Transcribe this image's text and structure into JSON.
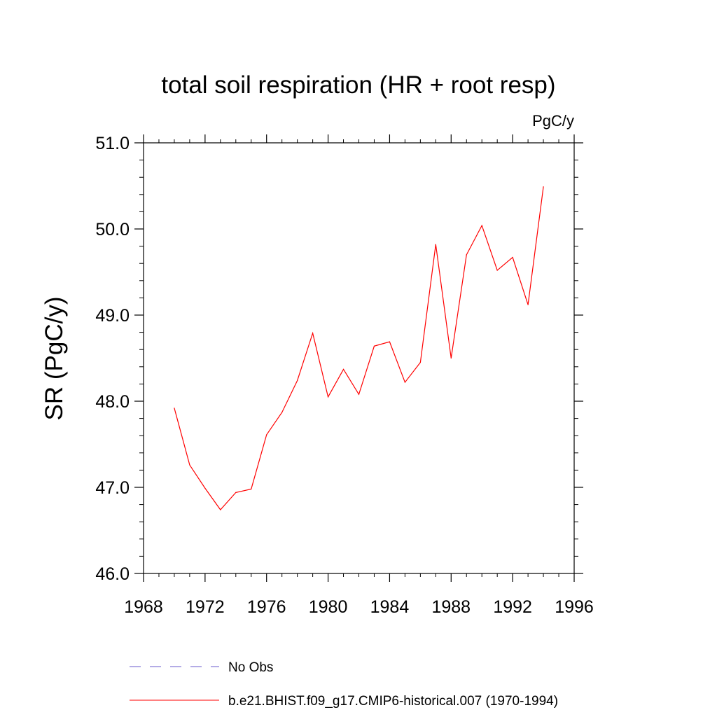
{
  "chart_data": {
    "type": "line",
    "title": "total soil respiration (HR + root resp)",
    "units": "PgC/y",
    "ylabel": "SR  (PgC/y)",
    "xlabel": "",
    "xlim": [
      1968,
      1996
    ],
    "ylim": [
      46.0,
      51.0
    ],
    "x_ticks": [
      1968,
      1972,
      1976,
      1980,
      1984,
      1988,
      1992,
      1996
    ],
    "x_tick_labels": [
      "1968",
      "1972",
      "1976",
      "1980",
      "1984",
      "1988",
      "1992",
      "1996"
    ],
    "y_ticks": [
      46.0,
      47.0,
      48.0,
      49.0,
      50.0,
      51.0
    ],
    "y_tick_labels": [
      "46.0",
      "47.0",
      "48.0",
      "49.0",
      "50.0",
      "51.0"
    ],
    "grid": false,
    "legend_position": "bottom",
    "series": [
      {
        "name": "b.e21.BHIST.f09_g17.CMIP6-historical.007 (1970-1994)",
        "color": "#ff0000",
        "style": "solid",
        "x": [
          1970,
          1971,
          1972,
          1973,
          1974,
          1975,
          1976,
          1977,
          1978,
          1979,
          1980,
          1981,
          1982,
          1983,
          1984,
          1985,
          1986,
          1987,
          1988,
          1989,
          1990,
          1991,
          1992,
          1993,
          1994
        ],
        "values": [
          47.92,
          47.26,
          46.99,
          46.74,
          46.94,
          46.98,
          47.61,
          47.87,
          48.24,
          48.79,
          48.05,
          48.37,
          48.08,
          48.64,
          48.69,
          48.22,
          48.45,
          49.82,
          48.5,
          49.7,
          50.04,
          49.52,
          49.67,
          49.12,
          50.49
        ]
      }
    ],
    "legend": [
      {
        "label": "No Obs",
        "color": "#6a5acd",
        "style": "dashed"
      },
      {
        "label": "b.e21.BHIST.f09_g17.CMIP6-historical.007 (1970-1994)",
        "color": "#ff0000",
        "style": "solid"
      }
    ]
  }
}
